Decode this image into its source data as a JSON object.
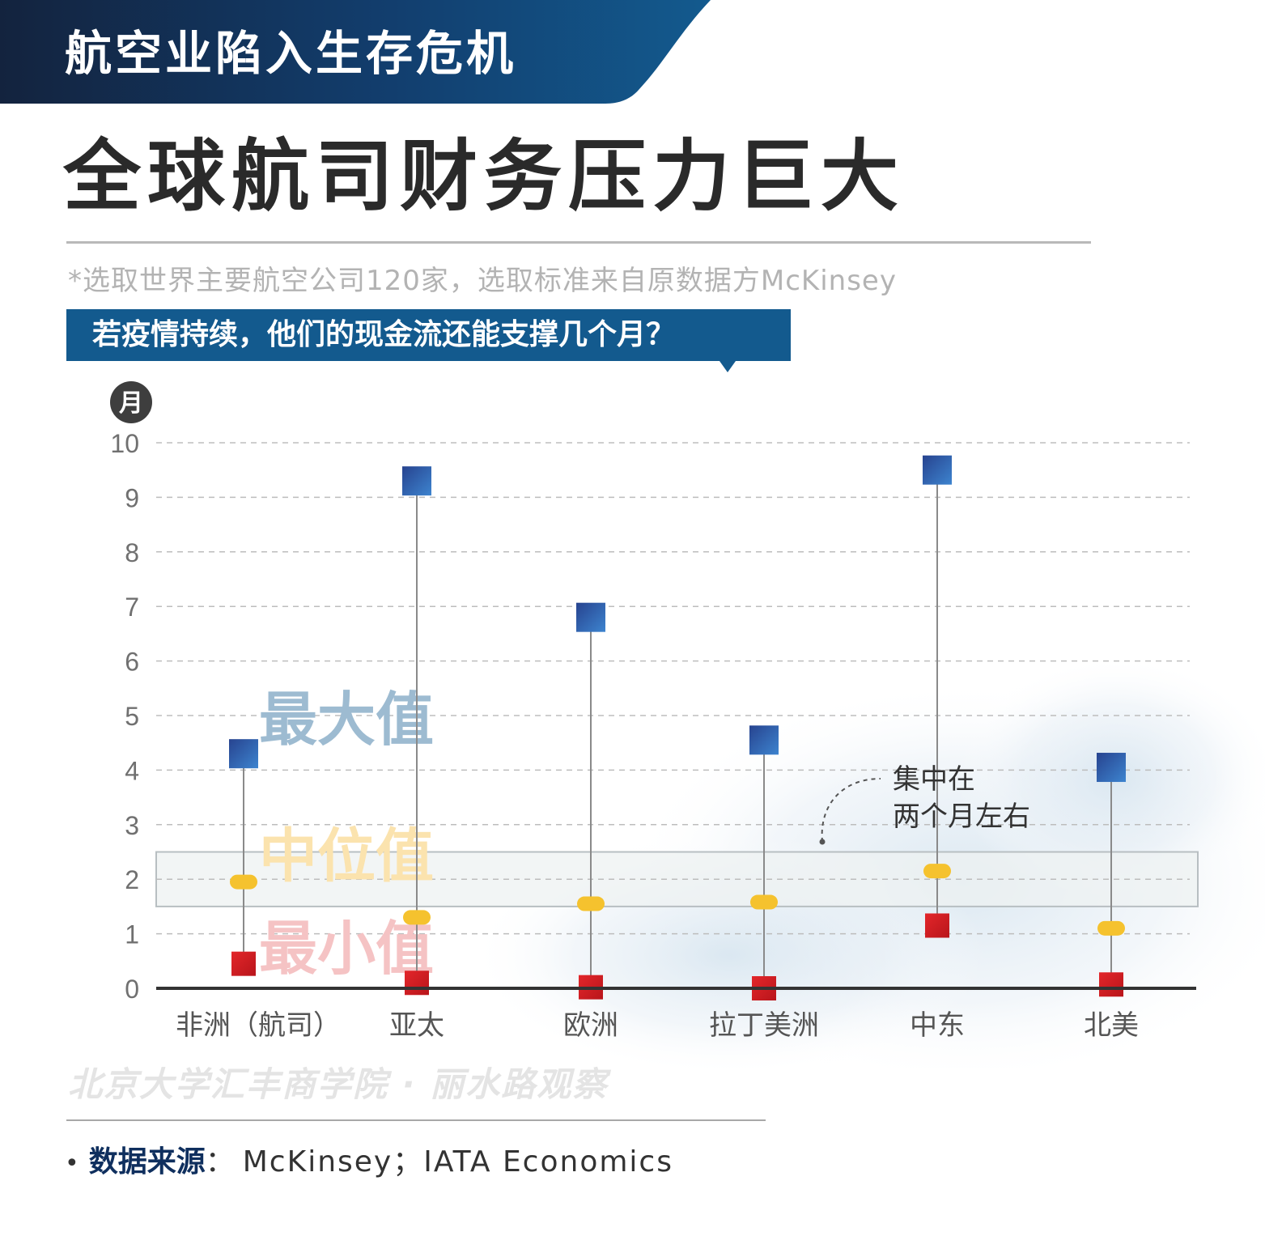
{
  "header": {
    "kicker": "航空业陷入生存危机",
    "title": "全球航司财务压力巨大",
    "note": "*选取世界主要航空公司120家，选取标准来自原数据方McKinsey",
    "question": "若疫情持续，他们的现金流还能支撑几个月？"
  },
  "chart_data": {
    "type": "dot_range",
    "title": "",
    "xlabel": "",
    "ylabel": "月",
    "ylim": [
      0,
      10
    ],
    "yticks": [
      "0",
      "1",
      "2",
      "3",
      "4",
      "5",
      "6",
      "7",
      "8",
      "9",
      "10"
    ],
    "grid": true,
    "categories": [
      "非洲（航司）",
      "亚太",
      "欧洲",
      "拉丁美洲",
      "中东",
      "北美"
    ],
    "series": [
      {
        "name": "最大值",
        "values": [
          4.3,
          9.3,
          6.8,
          4.55,
          9.5,
          4.05
        ]
      },
      {
        "name": "中位值",
        "values": [
          1.95,
          1.3,
          1.55,
          1.58,
          2.15,
          1.1
        ]
      },
      {
        "name": "最小值",
        "values": [
          0.45,
          0.1,
          0.02,
          0.0,
          1.15,
          0.07
        ]
      }
    ],
    "highlight_band": {
      "from": 1.5,
      "to": 2.5
    },
    "annotation": [
      "集中在",
      "两个月左右"
    ]
  },
  "colors": {
    "max": "#2f5fa8",
    "median": "#f5c22e",
    "min": "#d21a1e",
    "banner": "#135a8e",
    "label_max": "#9dbbd1",
    "label_median": "#fbe3ae",
    "label_min": "#f5c3c4"
  },
  "footer": {
    "watermark": "北京大学汇丰商学院 · 丽水路观察",
    "source_label": "数据来源",
    "source_sep": "：",
    "source_value": "McKinsey；IATA Economics"
  }
}
